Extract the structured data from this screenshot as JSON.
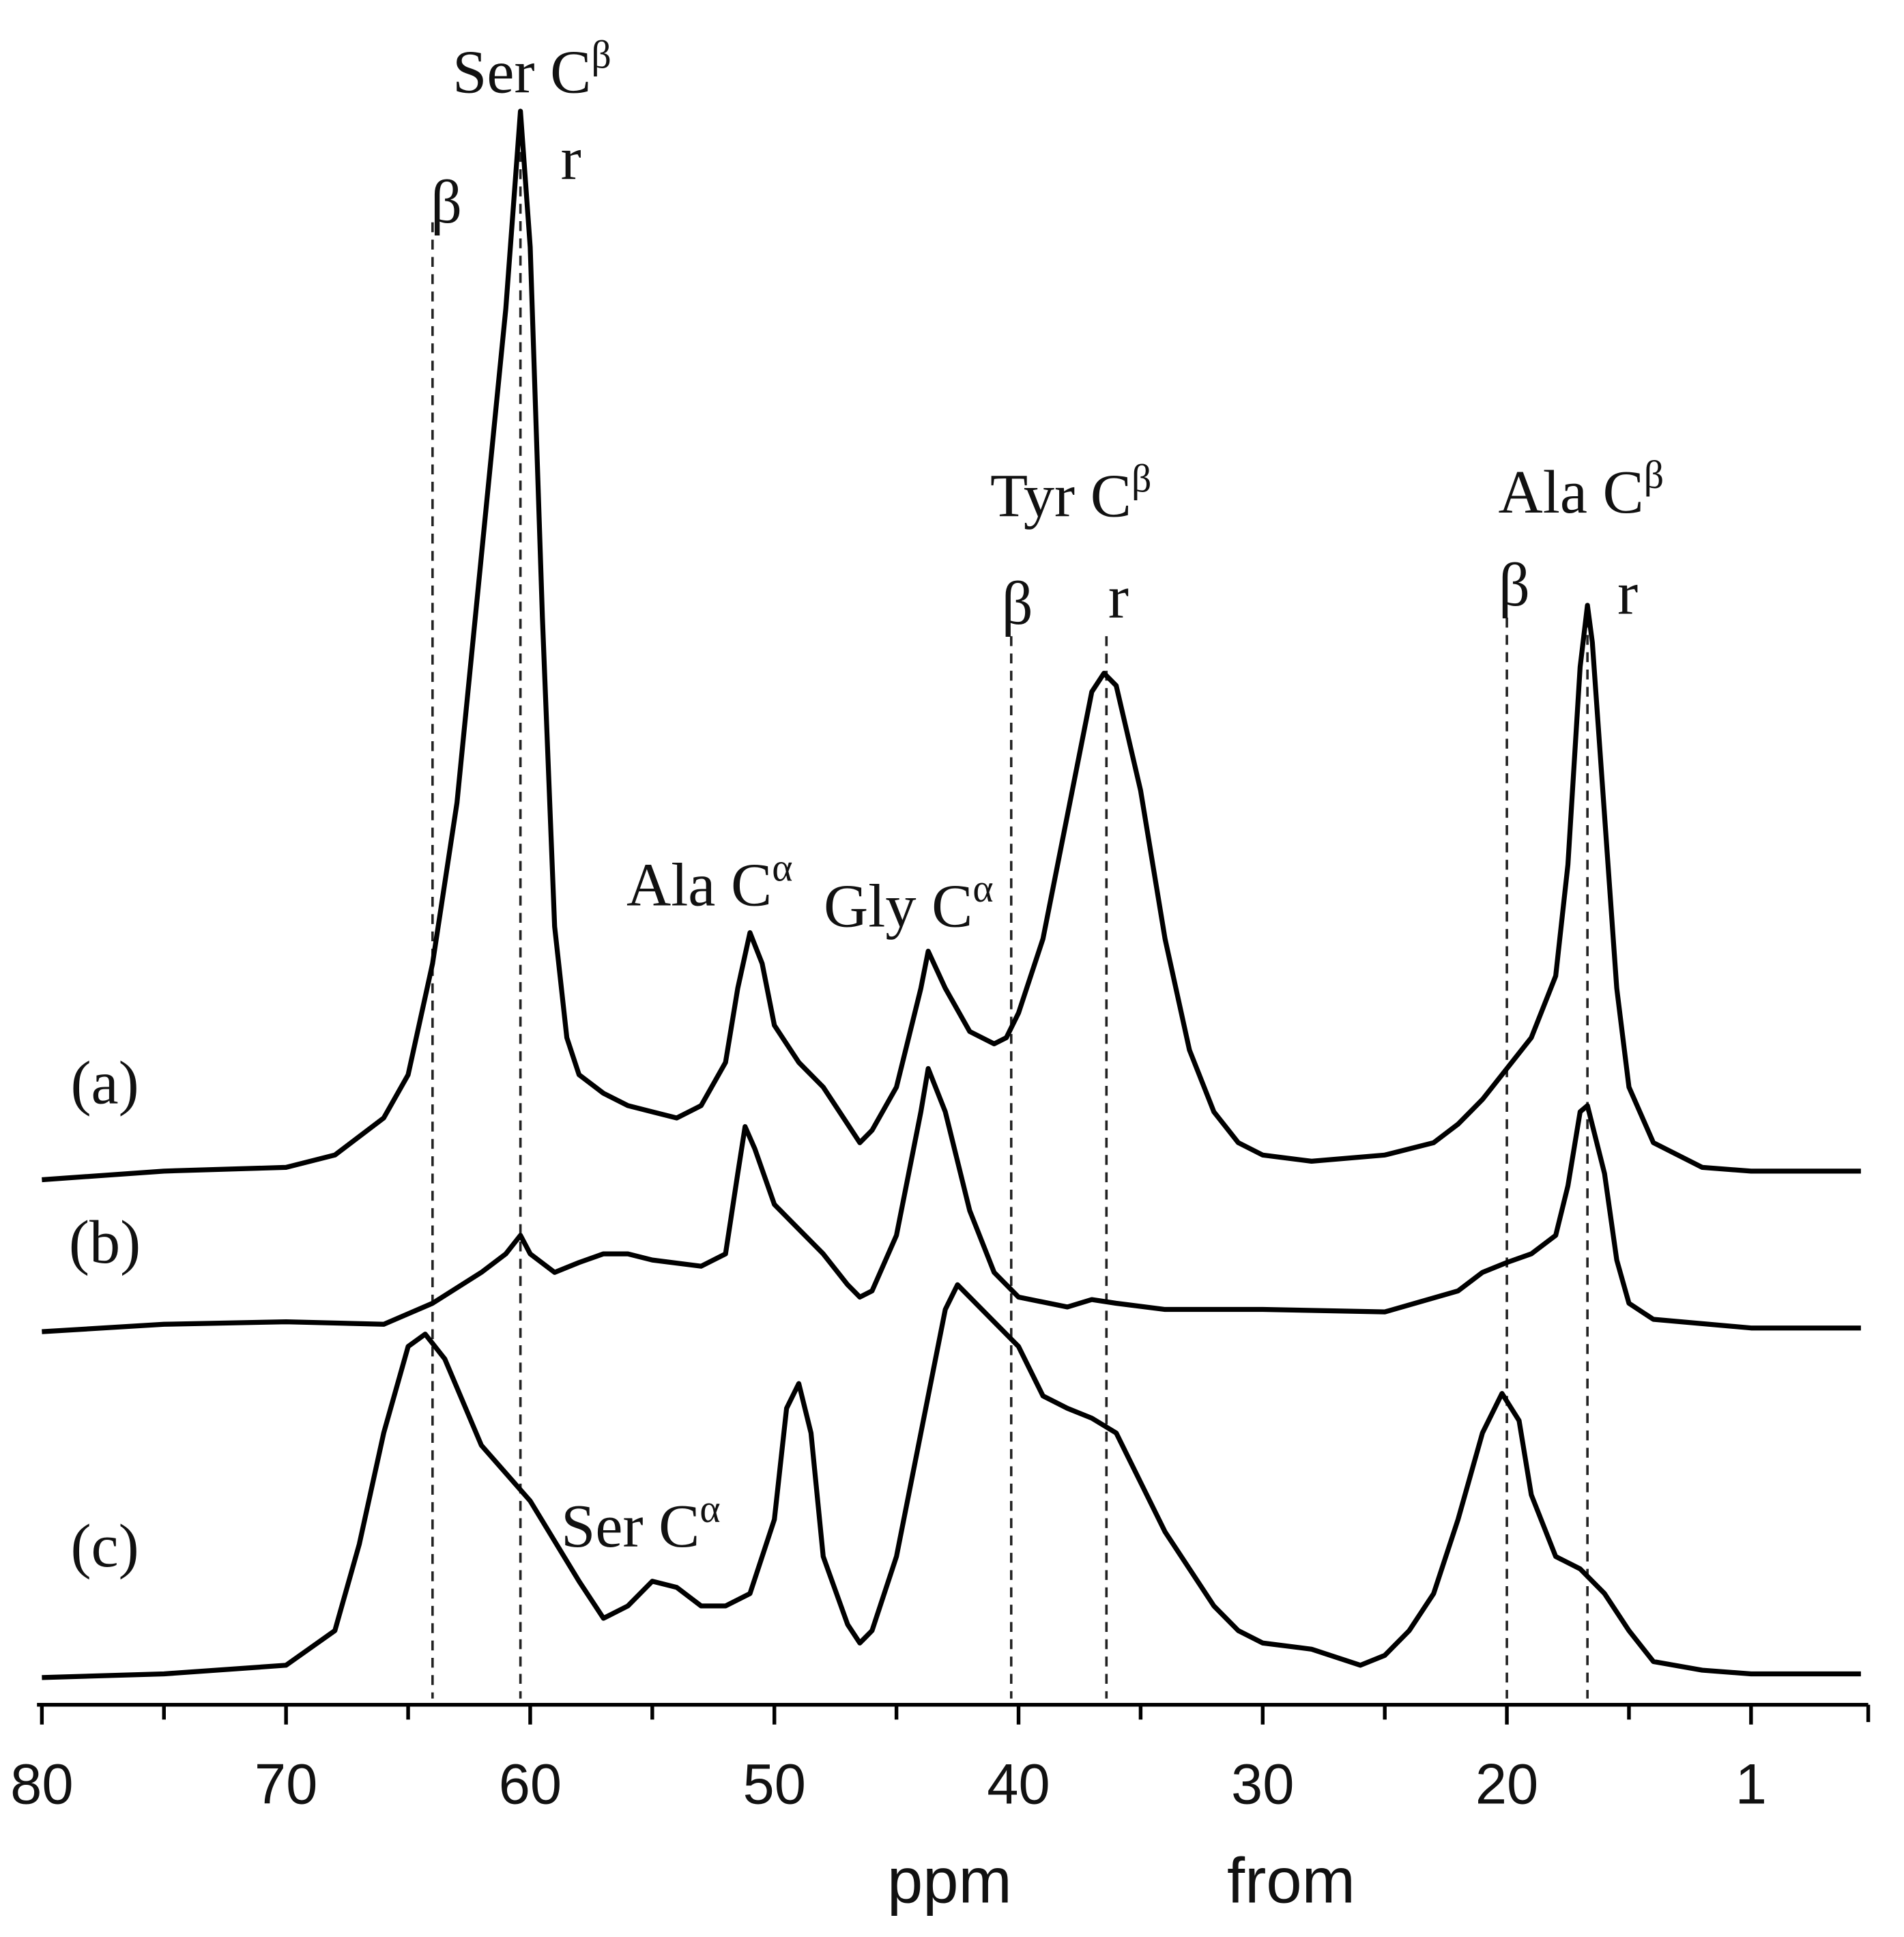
{
  "chart_data": {
    "type": "line",
    "x_axis_labels": [
      "ppm",
      "from"
    ],
    "xlim": [
      80.2,
      5.2
    ],
    "ylim": [
      0,
      130
    ],
    "xticks": [
      80,
      70,
      60,
      50,
      40,
      30,
      20,
      {
        "value": 10,
        "label": "1"
      }
    ],
    "xminor_ticks": [
      75,
      65,
      55,
      45,
      35,
      25,
      15
    ],
    "series": [
      {
        "name": "(a)",
        "color": "#000000",
        "x": [
          80,
          75,
          70,
          68,
          66,
          65,
          64,
          63,
          62,
          61,
          60.4,
          60,
          59.5,
          59,
          58.5,
          58,
          57,
          56,
          55,
          54,
          53,
          52,
          51.5,
          51,
          50.5,
          50,
          49,
          48,
          47,
          46.5,
          46,
          45,
          44,
          43.7,
          43,
          42,
          41,
          40.5,
          40,
          39,
          38,
          37,
          36.5,
          36,
          35,
          34,
          33,
          32,
          31,
          30,
          28,
          25,
          23,
          22,
          21,
          20,
          19,
          18,
          17.5,
          17,
          16.7,
          16.5,
          16,
          15.5,
          15,
          14,
          12,
          10,
          5.5
        ],
        "values": [
          42.5,
          43.2,
          43.5,
          44.5,
          47.5,
          51,
          60,
          73,
          93,
          113,
          129,
          118,
          88,
          63,
          54,
          51,
          49.5,
          48.5,
          48,
          47.5,
          48.5,
          52,
          58,
          62.5,
          60,
          55,
          52,
          50,
          47,
          45.5,
          46.5,
          50,
          58,
          61,
          58,
          54.5,
          53.5,
          54,
          56,
          62,
          72,
          82,
          83.5,
          82.5,
          74,
          62,
          53,
          48,
          45.5,
          44.5,
          44,
          44.5,
          45.5,
          47,
          49,
          51.5,
          54,
          59,
          68,
          84,
          89,
          86,
          72,
          58,
          50,
          45.5,
          43.5,
          43.2,
          43.2
        ]
      },
      {
        "name": "(b)",
        "color": "#000000",
        "x": [
          80,
          75,
          70,
          66,
          64,
          62,
          61,
          60.4,
          60,
          59,
          58,
          57,
          56,
          55,
          53,
          52,
          51.5,
          51.2,
          50.8,
          50,
          49,
          48,
          47,
          46.5,
          46,
          45,
          44,
          43.7,
          43,
          42,
          41,
          40,
          38,
          37,
          36,
          34,
          30,
          25,
          22,
          21,
          20,
          19,
          18,
          17.5,
          17,
          16.7,
          16,
          15.5,
          15,
          14,
          10,
          5.5
        ],
        "values": [
          30.2,
          30.8,
          31,
          30.8,
          32.5,
          35,
          36.5,
          38,
          36.5,
          35,
          35.8,
          36.5,
          36.5,
          36,
          35.5,
          36.5,
          43,
          46.8,
          45,
          40.5,
          38.5,
          36.5,
          34,
          33,
          33.5,
          38,
          48,
          51.5,
          48,
          40,
          35,
          33,
          32.2,
          32.8,
          32.5,
          32,
          32,
          31.8,
          33.5,
          35,
          35.8,
          36.5,
          38,
          42,
          48,
          48.5,
          43,
          36,
          32.5,
          31.2,
          30.5,
          30.5
        ]
      },
      {
        "name": "(c)",
        "color": "#000000",
        "x": [
          80,
          75,
          70,
          68,
          67,
          66,
          65,
          64.3,
          63.5,
          62,
          60,
          58,
          57,
          56,
          55,
          54,
          53,
          52,
          51,
          50,
          49.5,
          49,
          48.5,
          48,
          47,
          46.5,
          46,
          45,
          44,
          43,
          42.5,
          42,
          41,
          40,
          39,
          38,
          37,
          36,
          35,
          34,
          33,
          32,
          31,
          30,
          28,
          26,
          25,
          24,
          23,
          22,
          21,
          20.2,
          19.5,
          19,
          18,
          17,
          16,
          15,
          14,
          12,
          10,
          5.5
        ],
        "values": [
          2.2,
          2.5,
          3.2,
          6,
          13,
          22,
          29,
          30,
          28,
          21,
          16.5,
          10,
          7,
          8,
          10,
          9.5,
          8,
          8,
          9,
          15,
          24,
          26,
          22,
          12,
          6.5,
          5,
          6,
          12,
          22,
          32,
          34,
          33,
          31,
          29,
          25,
          24,
          23.2,
          22,
          18,
          14,
          11,
          8,
          6,
          5,
          4.5,
          3.2,
          4,
          6,
          9,
          15,
          22,
          25.2,
          23,
          17,
          12,
          11,
          9,
          6,
          3.5,
          2.8,
          2.5,
          2.5
        ]
      }
    ],
    "reference_lines": [
      {
        "x": 64,
        "label": "β"
      },
      {
        "x": 60.4,
        "label": "r"
      },
      {
        "x": 40.3,
        "label": "β"
      },
      {
        "x": 36.4,
        "label": "r"
      },
      {
        "x": 20,
        "label": "β"
      },
      {
        "x": 16.7,
        "label": "r"
      }
    ],
    "annotations": [
      {
        "text": "Ser C",
        "sup": "β"
      },
      {
        "text": "Ala C",
        "sup": "α"
      },
      {
        "text": "Gly C",
        "sup": "α"
      },
      {
        "text": "Tyr C",
        "sup": "β"
      },
      {
        "text": "Ala C",
        "sup": "β"
      },
      {
        "text": "Ser C",
        "sup": "α"
      }
    ]
  }
}
